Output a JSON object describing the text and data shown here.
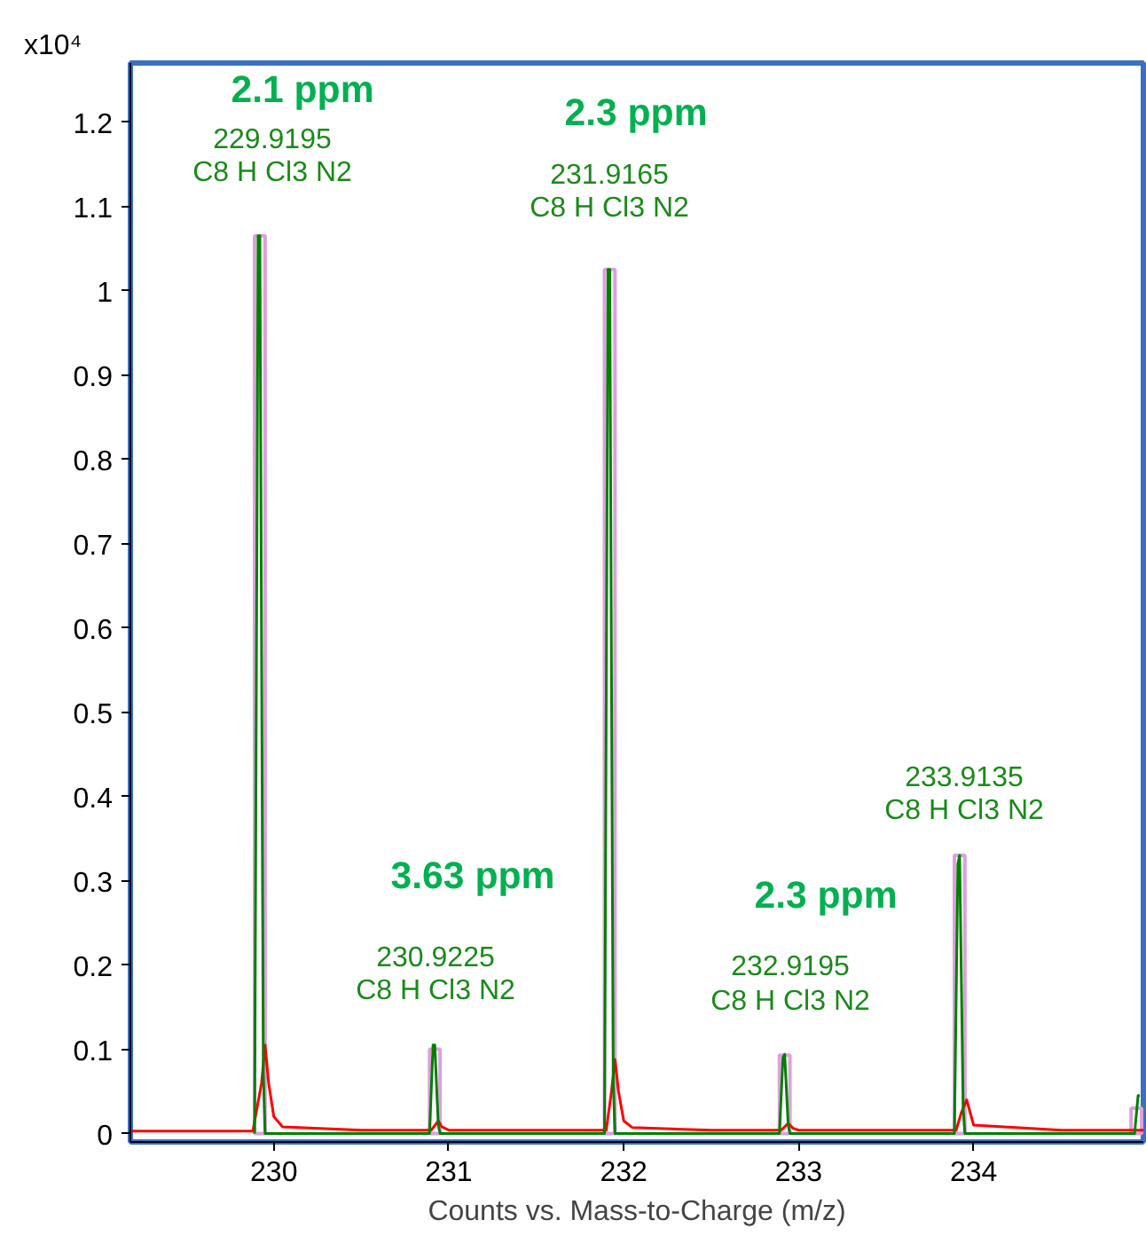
{
  "chart_data": {
    "type": "line",
    "xlabel": "Counts vs. Mass-to-Charge (m/z)",
    "ylabel": "x10⁴",
    "xlim": [
      229.18,
      234.97
    ],
    "ylim": [
      -0.01,
      1.27
    ],
    "xticks": [
      230,
      231,
      232,
      233,
      234
    ],
    "yticks": [
      0,
      0.1,
      0.2,
      0.3,
      0.4,
      0.5,
      0.6,
      0.7,
      0.8,
      0.9,
      1,
      1.1,
      1.2
    ],
    "grid": false,
    "series": [
      {
        "type": "bar",
        "color": "#dda0dd",
        "x": [
          229.92,
          230.92,
          231.92,
          232.92,
          233.92,
          234.93
        ],
        "values": [
          1.065,
          0.1,
          1.025,
          0.093,
          0.33,
          0.03
        ]
      },
      {
        "color": "#ff0000",
        "x": [
          229.18,
          229.5,
          229.88,
          229.93,
          229.95,
          229.97,
          230.0,
          230.05,
          230.5,
          230.9,
          230.94,
          230.96,
          231.0,
          231.5,
          231.9,
          231.93,
          231.95,
          231.97,
          232.0,
          232.05,
          232.5,
          232.9,
          232.94,
          232.97,
          233.0,
          233.5,
          233.9,
          233.93,
          233.96,
          234.0,
          234.5,
          234.97
        ],
        "values": [
          0.003,
          0.003,
          0.003,
          0.06,
          0.105,
          0.06,
          0.02,
          0.008,
          0.004,
          0.004,
          0.015,
          0.008,
          0.004,
          0.004,
          0.004,
          0.05,
          0.088,
          0.05,
          0.015,
          0.007,
          0.004,
          0.004,
          0.012,
          0.006,
          0.004,
          0.004,
          0.004,
          0.025,
          0.04,
          0.01,
          0.004,
          0.004
        ]
      },
      {
        "color": "#007f00",
        "x": [
          229.89,
          229.91,
          229.92,
          229.94,
          229.95,
          230.89,
          230.91,
          230.92,
          230.94,
          230.95,
          231.89,
          231.91,
          231.92,
          231.94,
          231.95,
          232.89,
          232.91,
          232.92,
          232.94,
          232.95,
          233.89,
          233.91,
          233.92,
          233.94,
          233.95,
          234.92,
          234.94,
          234.95
        ],
        "values": [
          0,
          1.065,
          1.065,
          0.07,
          0,
          0,
          0.105,
          0.105,
          0.01,
          0,
          0,
          1.025,
          1.025,
          0.06,
          0,
          0,
          0.09,
          0.094,
          0.01,
          0,
          0,
          0.32,
          0.33,
          0.03,
          0,
          0,
          0.045,
          0.045
        ]
      }
    ],
    "annotations": [
      "2.1 ppm",
      "229.9195",
      "C8 H Cl3 N2",
      "2.3 ppm",
      "231.9165",
      "C8 H Cl3 N2",
      "3.63 ppm",
      "230.9225",
      "C8 H Cl3 N2",
      "2.3 ppm",
      "232.9195",
      "C8 H Cl3 N2",
      "233.9135",
      "C8 H Cl3 N2"
    ]
  }
}
